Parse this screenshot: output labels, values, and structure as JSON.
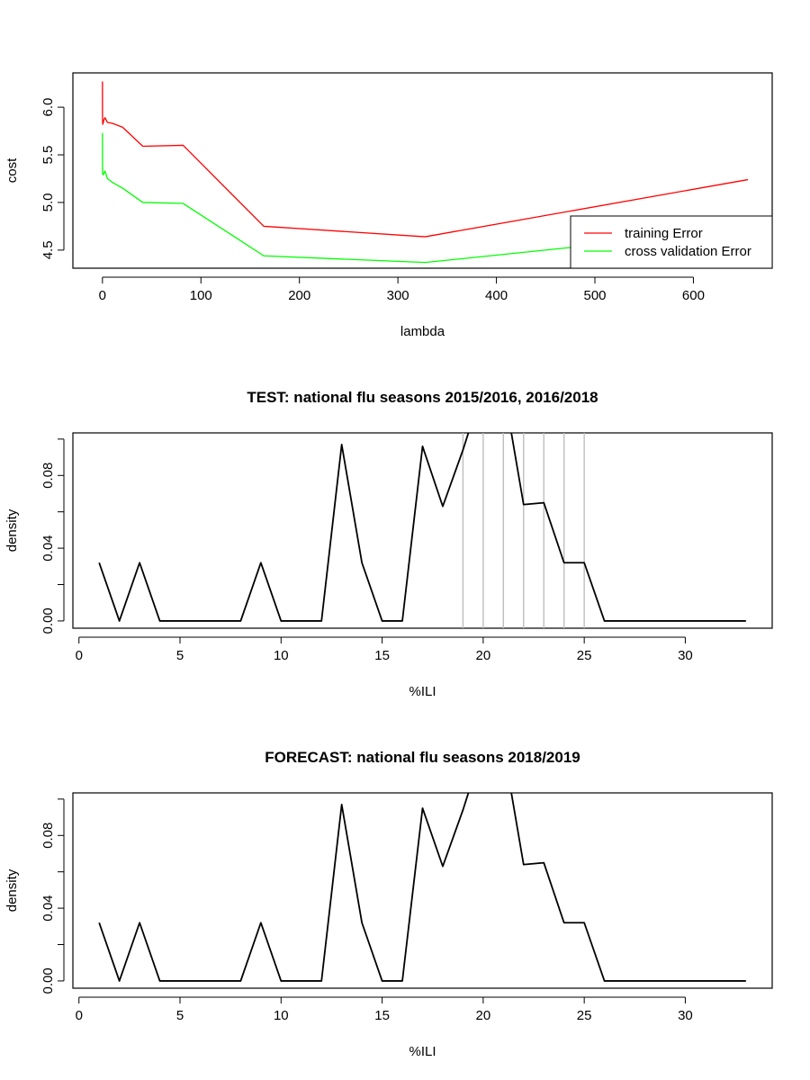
{
  "chart_data": [
    {
      "type": "line",
      "title": "",
      "xlabel": "lambda",
      "ylabel": "cost",
      "xlim": [
        -30,
        680
      ],
      "ylim": [
        4.31,
        6.36
      ],
      "x_ticks": [
        0,
        100,
        200,
        300,
        400,
        500,
        600
      ],
      "y_ticks": [
        4.5,
        5.0,
        5.5,
        6.0
      ],
      "x_tick_labels": [
        "0",
        "100",
        "200",
        "300",
        "400",
        "500",
        "600"
      ],
      "y_tick_labels": [
        "4.5",
        "5.0",
        "5.5",
        "6.0"
      ],
      "legend": {
        "position": "bottom-right",
        "entries": [
          "training Error",
          "cross validation Error"
        ]
      },
      "series": [
        {
          "name": "training Error",
          "color": "#ff0000",
          "x": [
            0.01,
            0.02,
            0.04,
            0.08,
            0.16,
            0.32,
            0.64,
            1.28,
            2.56,
            5.12,
            10.24,
            20.48,
            40.96,
            81.92,
            163.84,
            327.68,
            655.36
          ],
          "y": [
            6.27,
            6.15,
            6.02,
            5.92,
            5.86,
            5.82,
            5.83,
            5.86,
            5.89,
            5.84,
            5.83,
            5.79,
            5.59,
            5.6,
            4.75,
            4.64,
            5.24
          ]
        },
        {
          "name": "cross validation Error",
          "color": "#00ff00",
          "x": [
            0.01,
            0.02,
            0.04,
            0.08,
            0.16,
            0.32,
            0.64,
            1.28,
            2.56,
            5.12,
            10.24,
            20.48,
            40.96,
            81.92,
            163.84,
            327.68,
            655.36
          ],
          "y": [
            5.73,
            5.6,
            5.47,
            5.38,
            5.32,
            5.3,
            5.29,
            5.3,
            5.33,
            5.25,
            5.21,
            5.15,
            5.0,
            4.99,
            4.44,
            4.37,
            4.72
          ]
        }
      ]
    },
    {
      "type": "line",
      "title": "TEST: national flu seasons 2015/2016, 2016/2018",
      "xlabel": "%ILI",
      "ylabel": "density",
      "xlim": [
        -0.3,
        34.3
      ],
      "ylim": [
        -0.004,
        0.1034
      ],
      "x_ticks": [
        0,
        5,
        10,
        15,
        20,
        25,
        30
      ],
      "y_ticks": [
        0.0,
        0.02,
        0.04,
        0.06,
        0.08,
        0.1
      ],
      "x_tick_labels": [
        "0",
        "5",
        "10",
        "15",
        "20",
        "25",
        "30"
      ],
      "y_tick_labels": [
        "0.00",
        "",
        "0.04",
        "",
        "0.08",
        ""
      ],
      "vlines": [
        19,
        20,
        21,
        22,
        23,
        24,
        25
      ],
      "vline_color": "#bebebe",
      "series": [
        {
          "color": "#000000",
          "x": [
            1,
            2,
            3,
            4,
            5,
            6,
            7,
            8,
            9,
            10,
            11,
            12,
            13,
            14,
            15,
            16,
            17,
            18,
            19,
            20,
            21,
            22,
            23,
            24,
            25,
            26,
            27,
            28,
            29,
            30,
            31,
            32,
            33
          ],
          "y": [
            0.032,
            0.0,
            0.032,
            0.0,
            0.0,
            0.0,
            0.0,
            0.0,
            0.032,
            0.0,
            0.0,
            0.0,
            0.097,
            0.032,
            0.0,
            0.0,
            0.096,
            0.063,
            0.094,
            0.129,
            0.129,
            0.064,
            0.065,
            0.032,
            0.032,
            0.0,
            0.0,
            0.0,
            0.0,
            0.0,
            0.0,
            0.0,
            0.0
          ]
        }
      ]
    },
    {
      "type": "line",
      "title": "FORECAST: national flu seasons 2018/2019",
      "xlabel": "%ILI",
      "ylabel": "density",
      "xlim": [
        -0.3,
        34.3
      ],
      "ylim": [
        -0.004,
        0.1034
      ],
      "x_ticks": [
        0,
        5,
        10,
        15,
        20,
        25,
        30
      ],
      "y_ticks": [
        0.0,
        0.02,
        0.04,
        0.06,
        0.08,
        0.1
      ],
      "x_tick_labels": [
        "0",
        "5",
        "10",
        "15",
        "20",
        "25",
        "30"
      ],
      "y_tick_labels": [
        "0.00",
        "",
        "0.04",
        "",
        "0.08",
        ""
      ],
      "series": [
        {
          "color": "#000000",
          "x": [
            1,
            2,
            3,
            4,
            5,
            6,
            7,
            8,
            9,
            10,
            11,
            12,
            13,
            14,
            15,
            16,
            17,
            18,
            19,
            20,
            21,
            22,
            23,
            24,
            25,
            26,
            27,
            28,
            29,
            30,
            31,
            32,
            33
          ],
          "y": [
            0.032,
            0.0,
            0.032,
            0.0,
            0.0,
            0.0,
            0.0,
            0.0,
            0.032,
            0.0,
            0.0,
            0.0,
            0.097,
            0.032,
            0.0,
            0.0,
            0.095,
            0.063,
            0.094,
            0.129,
            0.129,
            0.064,
            0.065,
            0.032,
            0.032,
            0.0,
            0.0,
            0.0,
            0.0,
            0.0,
            0.0,
            0.0,
            0.0
          ]
        }
      ]
    }
  ]
}
